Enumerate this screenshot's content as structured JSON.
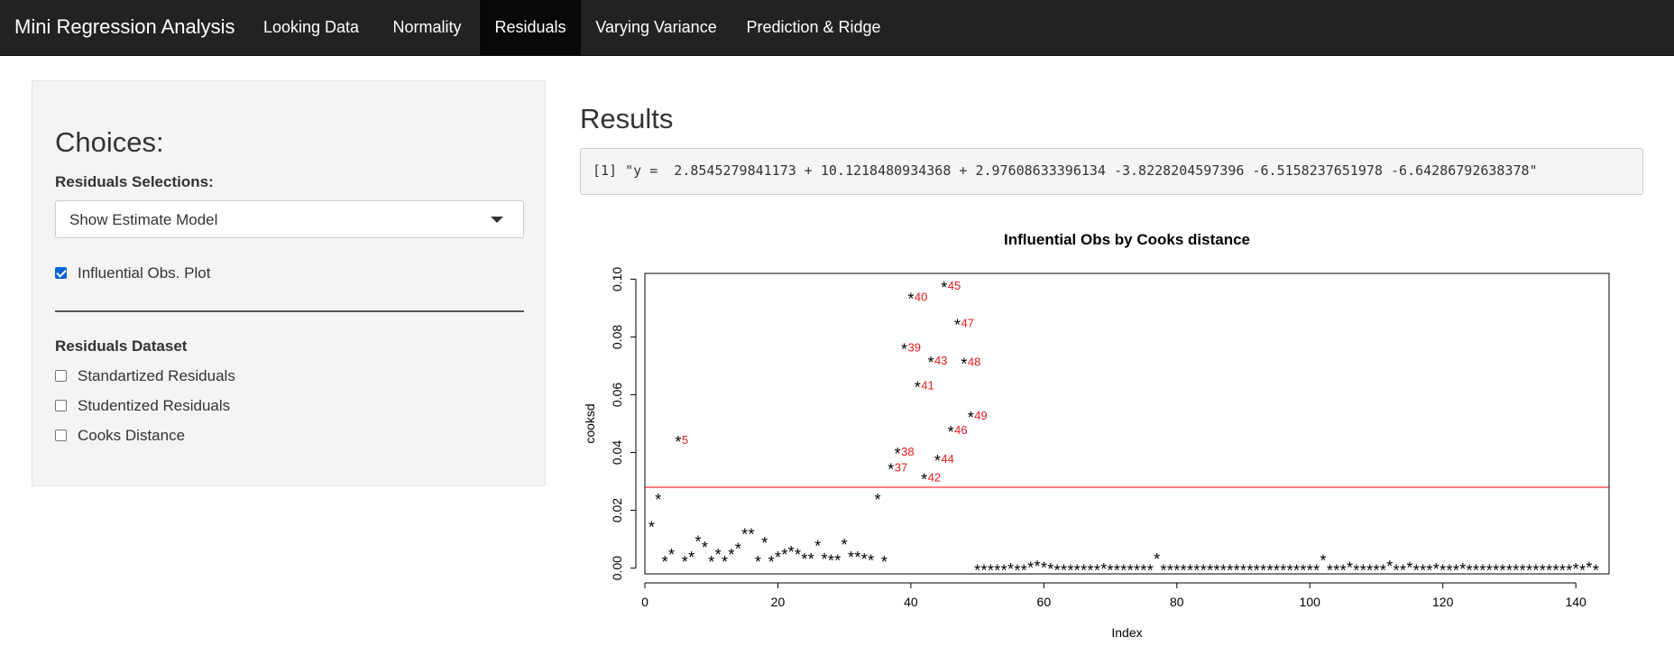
{
  "app": {
    "title": "Mini Regression Analysis",
    "tabs": [
      {
        "label": "Looking Data",
        "active": false
      },
      {
        "label": "Normality",
        "active": false
      },
      {
        "label": "Residuals",
        "active": true
      },
      {
        "label": "Varying Variance",
        "active": false
      },
      {
        "label": "Prediction & Ridge",
        "active": false
      }
    ]
  },
  "sidebar": {
    "title": "Choices:",
    "residuals_selection_label": "Residuals Selections:",
    "residuals_selection_value": "Show Estimate Model",
    "influential_checkbox": {
      "label": "Influential Obs. Plot",
      "checked": true
    },
    "dataset_label": "Residuals Dataset",
    "dataset_options": [
      {
        "label": "Standartized Residuals",
        "checked": false
      },
      {
        "label": "Studentized Residuals",
        "checked": false
      },
      {
        "label": "Cooks Distance",
        "checked": false
      }
    ]
  },
  "main": {
    "results_title": "Results",
    "output_text": "[1] \"y =  2.8545279841173 + 10.1218480934368 + 2.97608633396134 -3.8228204597396 -6.5158237651978 -6.64286792638378\""
  },
  "colors": {
    "navbar": "#222222",
    "active_tab": "#080808",
    "threshold_line": "#ff0000",
    "point_labels": "#e31a1c"
  },
  "chart_data": {
    "type": "scatter",
    "title": "Influential Obs by Cooks distance",
    "xlabel": "Index",
    "ylabel": "cooksd",
    "xlim": [
      0,
      145
    ],
    "ylim": [
      -0.002,
      0.102
    ],
    "xticks": [
      0,
      20,
      40,
      60,
      80,
      100,
      120,
      140
    ],
    "yticks": [
      0.0,
      0.02,
      0.04,
      0.06,
      0.08,
      0.1
    ],
    "ytick_labels": [
      "0.00",
      "0.02",
      "0.04",
      "0.06",
      "0.08",
      "0.10"
    ],
    "marker": "*",
    "threshold": 0.028,
    "points": [
      [
        1,
        0.015
      ],
      [
        2,
        0.0245
      ],
      [
        3,
        0.003
      ],
      [
        4,
        0.0055
      ],
      [
        5,
        0.0445
      ],
      [
        6,
        0.003
      ],
      [
        7,
        0.0045
      ],
      [
        8,
        0.01
      ],
      [
        9,
        0.008
      ],
      [
        10,
        0.003
      ],
      [
        11,
        0.0055
      ],
      [
        12,
        0.003
      ],
      [
        13,
        0.0055
      ],
      [
        14,
        0.0075
      ],
      [
        15,
        0.0125
      ],
      [
        16,
        0.0125
      ],
      [
        17,
        0.003
      ],
      [
        18,
        0.0095
      ],
      [
        19,
        0.003
      ],
      [
        20,
        0.0045
      ],
      [
        21,
        0.0055
      ],
      [
        22,
        0.0065
      ],
      [
        23,
        0.0055
      ],
      [
        24,
        0.004
      ],
      [
        25,
        0.004
      ],
      [
        26,
        0.0085
      ],
      [
        27,
        0.004
      ],
      [
        28,
        0.0035
      ],
      [
        29,
        0.0035
      ],
      [
        30,
        0.009
      ],
      [
        31,
        0.0045
      ],
      [
        32,
        0.0045
      ],
      [
        33,
        0.004
      ],
      [
        34,
        0.0035
      ],
      [
        35,
        0.0245
      ],
      [
        36,
        0.003
      ],
      [
        37,
        0.035
      ],
      [
        38,
        0.0405
      ],
      [
        39,
        0.0765
      ],
      [
        40,
        0.094
      ],
      [
        41,
        0.0635
      ],
      [
        42,
        0.0315
      ],
      [
        43,
        0.072
      ],
      [
        44,
        0.038
      ],
      [
        45,
        0.098
      ],
      [
        46,
        0.048
      ],
      [
        47,
        0.085
      ],
      [
        48,
        0.0715
      ],
      [
        49,
        0.053
      ],
      [
        50,
        0.0
      ],
      [
        51,
        0.0
      ],
      [
        52,
        0.0
      ],
      [
        53,
        0.0
      ],
      [
        54,
        0.0
      ],
      [
        55,
        0.0005
      ],
      [
        56,
        0.0
      ],
      [
        57,
        0.0
      ],
      [
        58,
        0.001
      ],
      [
        59,
        0.0015
      ],
      [
        60,
        0.001
      ],
      [
        61,
        0.0005
      ],
      [
        62,
        0.0
      ],
      [
        63,
        0.0
      ],
      [
        64,
        0.0
      ],
      [
        65,
        0.0
      ],
      [
        66,
        0.0
      ],
      [
        67,
        0.0
      ],
      [
        68,
        0.0
      ],
      [
        69,
        0.0005
      ],
      [
        70,
        0.0
      ],
      [
        71,
        0.0
      ],
      [
        72,
        0.0
      ],
      [
        73,
        0.0
      ],
      [
        74,
        0.0
      ],
      [
        75,
        0.0
      ],
      [
        76,
        0.0
      ],
      [
        77,
        0.004
      ],
      [
        78,
        0.0
      ],
      [
        79,
        0.0
      ],
      [
        80,
        0.0
      ],
      [
        81,
        0.0
      ],
      [
        82,
        0.0
      ],
      [
        83,
        0.0
      ],
      [
        84,
        0.0
      ],
      [
        85,
        0.0
      ],
      [
        86,
        0.0
      ],
      [
        87,
        0.0
      ],
      [
        88,
        0.0
      ],
      [
        89,
        0.0
      ],
      [
        90,
        0.0
      ],
      [
        91,
        0.0
      ],
      [
        92,
        0.0
      ],
      [
        93,
        0.0
      ],
      [
        94,
        0.0
      ],
      [
        95,
        0.0
      ],
      [
        96,
        0.0
      ],
      [
        97,
        0.0
      ],
      [
        98,
        0.0
      ],
      [
        99,
        0.0
      ],
      [
        100,
        0.0
      ],
      [
        101,
        0.0
      ],
      [
        102,
        0.0035
      ],
      [
        103,
        0.0
      ],
      [
        104,
        0.0
      ],
      [
        105,
        0.0
      ],
      [
        106,
        0.001
      ],
      [
        107,
        0.0
      ],
      [
        108,
        0.0
      ],
      [
        109,
        0.0
      ],
      [
        110,
        0.0
      ],
      [
        111,
        0.0
      ],
      [
        112,
        0.0015
      ],
      [
        113,
        0.0
      ],
      [
        114,
        0.0
      ],
      [
        115,
        0.001
      ],
      [
        116,
        0.0
      ],
      [
        117,
        0.0
      ],
      [
        118,
        0.0
      ],
      [
        119,
        0.0005
      ],
      [
        120,
        0.0
      ],
      [
        121,
        0.0
      ],
      [
        122,
        0.0
      ],
      [
        123,
        0.0005
      ],
      [
        124,
        0.0
      ],
      [
        125,
        0.0
      ],
      [
        126,
        0.0
      ],
      [
        127,
        0.0
      ],
      [
        128,
        0.0
      ],
      [
        129,
        0.0
      ],
      [
        130,
        0.0
      ],
      [
        131,
        0.0
      ],
      [
        132,
        0.0
      ],
      [
        133,
        0.0
      ],
      [
        134,
        0.0
      ],
      [
        135,
        0.0
      ],
      [
        136,
        0.0
      ],
      [
        137,
        0.0
      ],
      [
        138,
        0.0
      ],
      [
        139,
        0.0
      ],
      [
        140,
        0.0005
      ],
      [
        141,
        0.0
      ],
      [
        142,
        0.001
      ],
      [
        143,
        0.0
      ]
    ],
    "labels": [
      {
        "text": "5",
        "x": 5,
        "y": 0.0445
      },
      {
        "text": "37",
        "x": 37,
        "y": 0.035
      },
      {
        "text": "38",
        "x": 38,
        "y": 0.0405
      },
      {
        "text": "39",
        "x": 39,
        "y": 0.0765
      },
      {
        "text": "40",
        "x": 40,
        "y": 0.094
      },
      {
        "text": "41",
        "x": 41,
        "y": 0.0635
      },
      {
        "text": "42",
        "x": 42,
        "y": 0.0315
      },
      {
        "text": "43",
        "x": 43,
        "y": 0.072
      },
      {
        "text": "44",
        "x": 44,
        "y": 0.038
      },
      {
        "text": "45",
        "x": 45,
        "y": 0.098
      },
      {
        "text": "46",
        "x": 46,
        "y": 0.048
      },
      {
        "text": "47",
        "x": 47,
        "y": 0.085
      },
      {
        "text": "48",
        "x": 48,
        "y": 0.0715
      },
      {
        "text": "49",
        "x": 49,
        "y": 0.053
      }
    ]
  }
}
